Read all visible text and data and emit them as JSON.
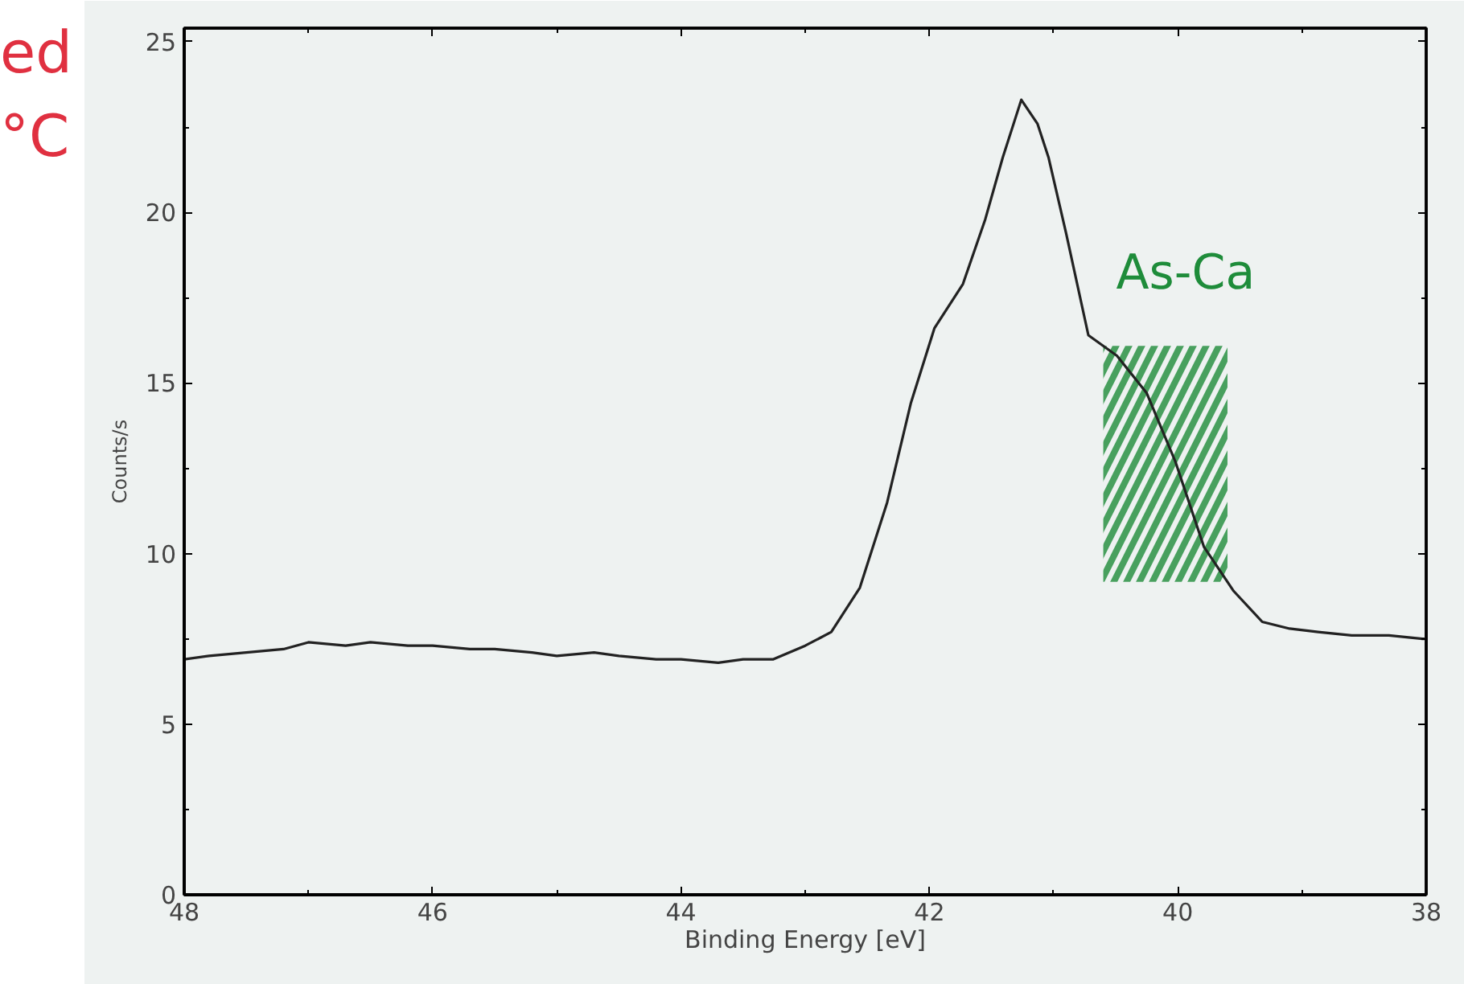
{
  "chart_data": {
    "type": "line",
    "xlabel": "Binding Energy [eV]",
    "ylabel": "Counts/s",
    "annotations": [
      "ed",
      "°C"
    ],
    "series": [
      {
        "color": "#222222",
        "x": [
          48,
          47.8,
          47.5,
          47.2,
          47,
          46.7,
          46.5,
          46.2,
          46,
          45.7,
          45.5,
          45.2,
          45,
          44.7,
          44.5,
          44.2,
          44,
          43.7,
          43.5,
          43.26,
          43.0,
          42.79,
          42.56,
          42.34,
          42.15,
          41.96,
          41.73,
          41.55,
          41.41,
          41.26,
          41.13,
          41.04,
          40.9,
          40.72,
          40.49,
          40.25,
          40.02,
          39.79,
          39.55,
          39.32,
          39.1,
          38.87,
          38.6,
          38.3,
          38.03,
          38
        ],
        "values": [
          6.9,
          7.0,
          7.1,
          7.2,
          7.4,
          7.3,
          7.4,
          7.3,
          7.3,
          7.2,
          7.2,
          7.1,
          7.0,
          7.1,
          7.0,
          6.9,
          6.9,
          6.8,
          6.9,
          6.9,
          7.3,
          7.7,
          9.0,
          11.5,
          14.4,
          16.6,
          17.9,
          19.8,
          21.6,
          23.3,
          22.6,
          21.6,
          19.4,
          16.4,
          15.8,
          14.7,
          12.7,
          10.2,
          8.9,
          8.0,
          7.8,
          7.7,
          7.6,
          7.6,
          7.5,
          7.5
        ]
      }
    ],
    "bands": [
      {
        "axis": "x",
        "from": 40.6,
        "to": 39.6,
        "label": "As-Ca",
        "color": "#1e8c3a"
      }
    ],
    "xlim": [
      48,
      38
    ],
    "xticks": [
      48,
      46,
      44,
      42,
      40,
      38
    ],
    "ylim": [
      0,
      25.4
    ],
    "yticks": [
      0,
      5,
      10,
      15,
      20,
      25
    ],
    "grid": false,
    "line_style": "solid",
    "marker": "none"
  }
}
